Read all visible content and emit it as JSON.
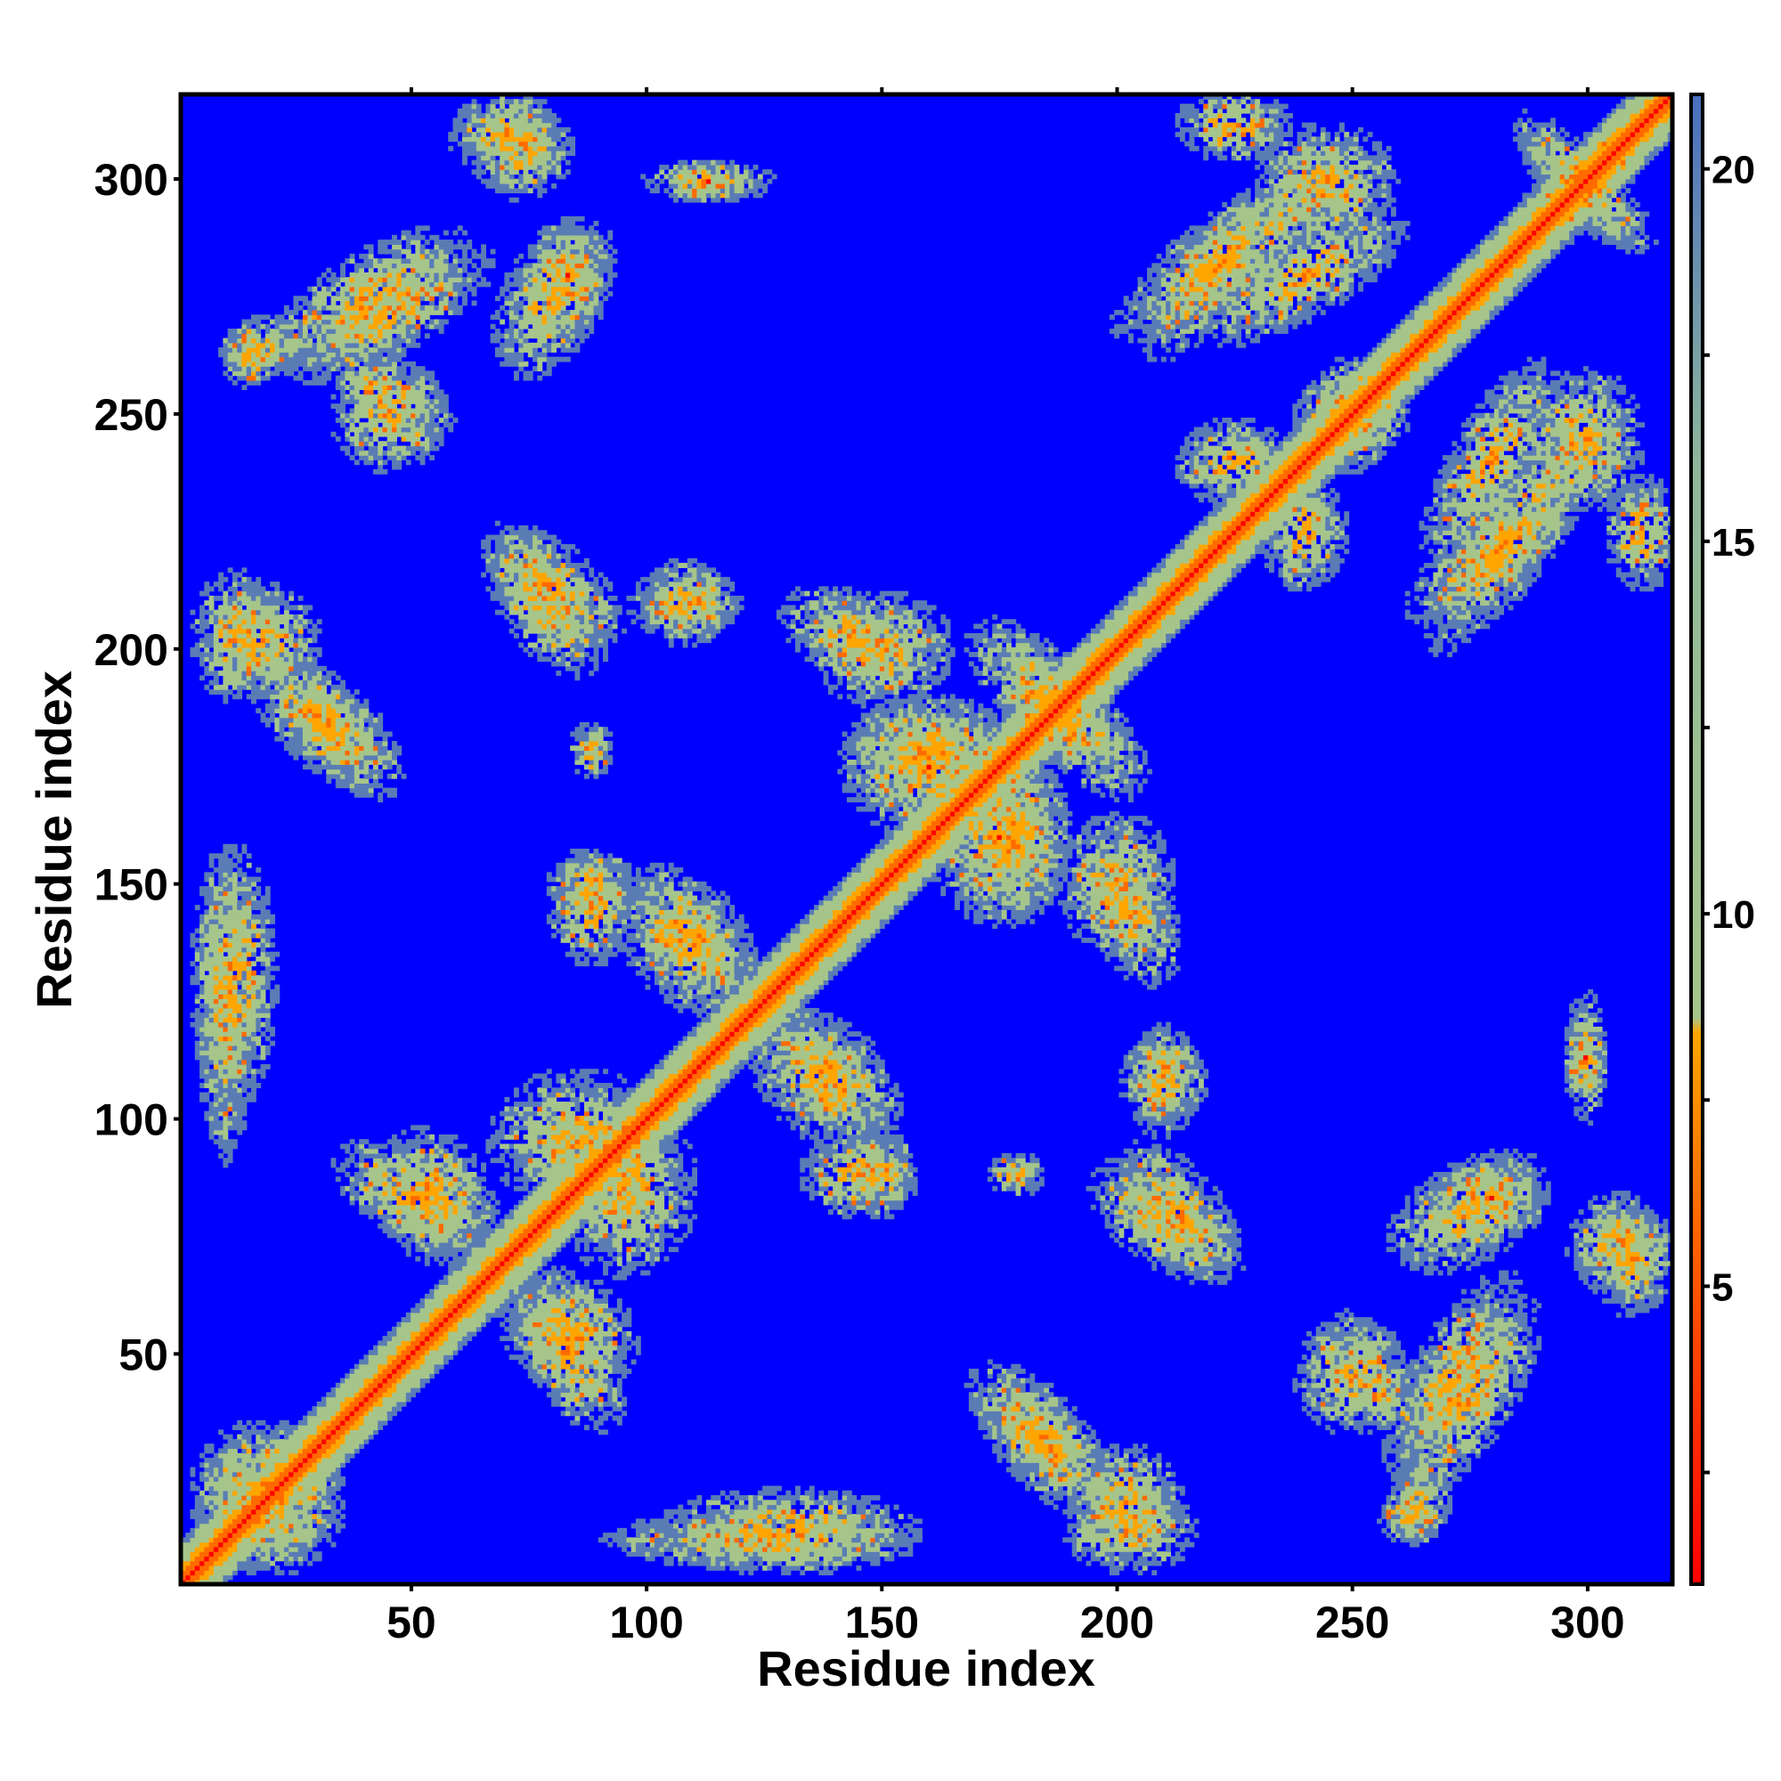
{
  "chart_data": {
    "type": "heatmap",
    "title": "",
    "xlabel": "Residue index",
    "ylabel": "Residue index",
    "n_residues": 318,
    "xlim": [
      1,
      318
    ],
    "ylim": [
      1,
      318
    ],
    "xticks": [
      50,
      100,
      150,
      200,
      250,
      300
    ],
    "yticks": [
      50,
      100,
      150,
      200,
      250,
      300
    ],
    "colorbar": {
      "ticks": [
        5,
        10,
        15,
        20
      ],
      "range": [
        1,
        21
      ],
      "colors": {
        "low": "#ff0000",
        "mid_low": "#ff6a00",
        "mid": "#ffa500",
        "mid_high": "#a6c58a",
        "high": "#5a7cb5",
        "max": "#0000ff"
      }
    },
    "background_value": 21,
    "diagonal_band_halfwidth": 9,
    "contact_blobs": [
      {
        "x": 73,
        "y": 307,
        "wx": 7,
        "wy": 7
      },
      {
        "x": 113,
        "y": 300,
        "wx": 9,
        "wy": 3
      },
      {
        "x": 40,
        "y": 275,
        "wx": 16,
        "wy": 6,
        "angle": 32
      },
      {
        "x": 18,
        "y": 265,
        "wx": 6,
        "wy": 4
      },
      {
        "x": 80,
        "y": 275,
        "wx": 7,
        "wy": 12,
        "angle": -30
      },
      {
        "x": 45,
        "y": 255,
        "wx": 10,
        "wy": 4,
        "angle": -30
      },
      {
        "x": 80,
        "y": 213,
        "wx": 12,
        "wy": 6,
        "angle": -40
      },
      {
        "x": 108,
        "y": 210,
        "wx": 8,
        "wy": 5
      },
      {
        "x": 12,
        "y": 203,
        "wx": 6,
        "wy": 9
      },
      {
        "x": 33,
        "y": 183,
        "wx": 12,
        "wy": 6,
        "angle": -45
      },
      {
        "x": 88,
        "y": 180,
        "wx": 3,
        "wy": 3
      },
      {
        "x": 88,
        "y": 150,
        "wx": 6,
        "wy": 5
      },
      {
        "x": 12,
        "y": 130,
        "wx": 6,
        "wy": 18
      },
      {
        "x": 110,
        "y": 138,
        "wx": 10,
        "wy": 6,
        "angle": -40
      },
      {
        "x": 143,
        "y": 203,
        "wx": 10,
        "wy": 6,
        "angle": -25
      },
      {
        "x": 185,
        "y": 190,
        "wx": 14,
        "wy": 6,
        "angle": -45
      },
      {
        "x": 160,
        "y": 175,
        "wx": 12,
        "wy": 10
      },
      {
        "x": 178,
        "y": 160,
        "wx": 8,
        "wy": 12
      },
      {
        "x": 200,
        "y": 150,
        "wx": 8,
        "wy": 10
      },
      {
        "x": 138,
        "y": 108,
        "wx": 12,
        "wy": 8,
        "angle": -40
      },
      {
        "x": 145,
        "y": 88,
        "wx": 8,
        "wy": 6
      },
      {
        "x": 177,
        "y": 88,
        "wx": 3,
        "wy": 3
      },
      {
        "x": 210,
        "y": 108,
        "wx": 6,
        "wy": 6
      },
      {
        "x": 210,
        "y": 78,
        "wx": 12,
        "wy": 6,
        "angle": -35
      },
      {
        "x": 50,
        "y": 83,
        "wx": 12,
        "wy": 6,
        "angle": -30
      },
      {
        "x": 85,
        "y": 95,
        "wx": 12,
        "wy": 10
      },
      {
        "x": 83,
        "y": 55,
        "wx": 10,
        "wy": 8,
        "angle": -30
      },
      {
        "x": 18,
        "y": 20,
        "wx": 10,
        "wy": 10
      },
      {
        "x": 125,
        "y": 10,
        "wx": 22,
        "wy": 4
      },
      {
        "x": 185,
        "y": 30,
        "wx": 12,
        "wy": 6,
        "angle": -45
      },
      {
        "x": 202,
        "y": 18,
        "wx": 8,
        "wy": 8
      },
      {
        "x": 250,
        "y": 45,
        "wx": 8,
        "wy": 8
      },
      {
        "x": 272,
        "y": 45,
        "wx": 6,
        "wy": 16,
        "angle": -30
      },
      {
        "x": 262,
        "y": 15,
        "wx": 4,
        "wy": 4
      },
      {
        "x": 280,
        "y": 83,
        "wx": 8,
        "wy": 6
      },
      {
        "x": 310,
        "y": 70,
        "wx": 6,
        "wy": 8
      },
      {
        "x": 300,
        "y": 112,
        "wx": 3,
        "wy": 5
      },
      {
        "x": 225,
        "y": 285,
        "wx": 20,
        "wy": 6,
        "angle": 35
      },
      {
        "x": 245,
        "y": 300,
        "wx": 10,
        "wy": 8
      },
      {
        "x": 280,
        "y": 240,
        "wx": 6,
        "wy": 16,
        "angle": -30
      },
      {
        "x": 280,
        "y": 220,
        "wx": 14,
        "wy": 5,
        "angle": 35
      },
      {
        "x": 300,
        "y": 302,
        "wx": 12,
        "wy": 4,
        "angle": 40
      },
      {
        "x": 300,
        "y": 298,
        "wx": 12,
        "wy": 4,
        "angle": -40
      },
      {
        "x": 312,
        "y": 225,
        "wx": 5,
        "wy": 8
      },
      {
        "x": 225,
        "y": 240,
        "wx": 8,
        "wy": 6
      },
      {
        "x": 250,
        "y": 250,
        "wx": 8,
        "wy": 6
      }
    ]
  }
}
